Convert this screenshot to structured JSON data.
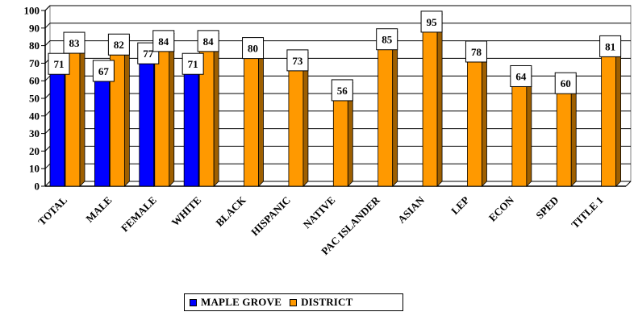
{
  "chart_data": {
    "type": "bar",
    "categories": [
      "TOTAL",
      "MALE",
      "FEMALE",
      "WHITE",
      "BLACK",
      "HISPANIC",
      "NATIVE",
      "PAC ISLANDER",
      "ASIAN",
      "LEP",
      "ECON",
      "SPED",
      "TITLE 1"
    ],
    "series": [
      {
        "name": "MAPLE GROVE",
        "color": "#0000FF",
        "values": [
          71,
          67,
          77,
          71,
          null,
          null,
          null,
          null,
          null,
          null,
          null,
          null,
          null
        ]
      },
      {
        "name": "DISTRICT",
        "color": "#FF9900",
        "values": [
          83,
          82,
          84,
          84,
          80,
          73,
          56,
          85,
          95,
          78,
          64,
          60,
          81
        ]
      }
    ],
    "ylim": [
      0,
      100
    ],
    "yticks": [
      0,
      10,
      20,
      30,
      40,
      50,
      60,
      70,
      80,
      90,
      100
    ],
    "grid": true,
    "legend_position": "bottom",
    "data_labels": true
  }
}
